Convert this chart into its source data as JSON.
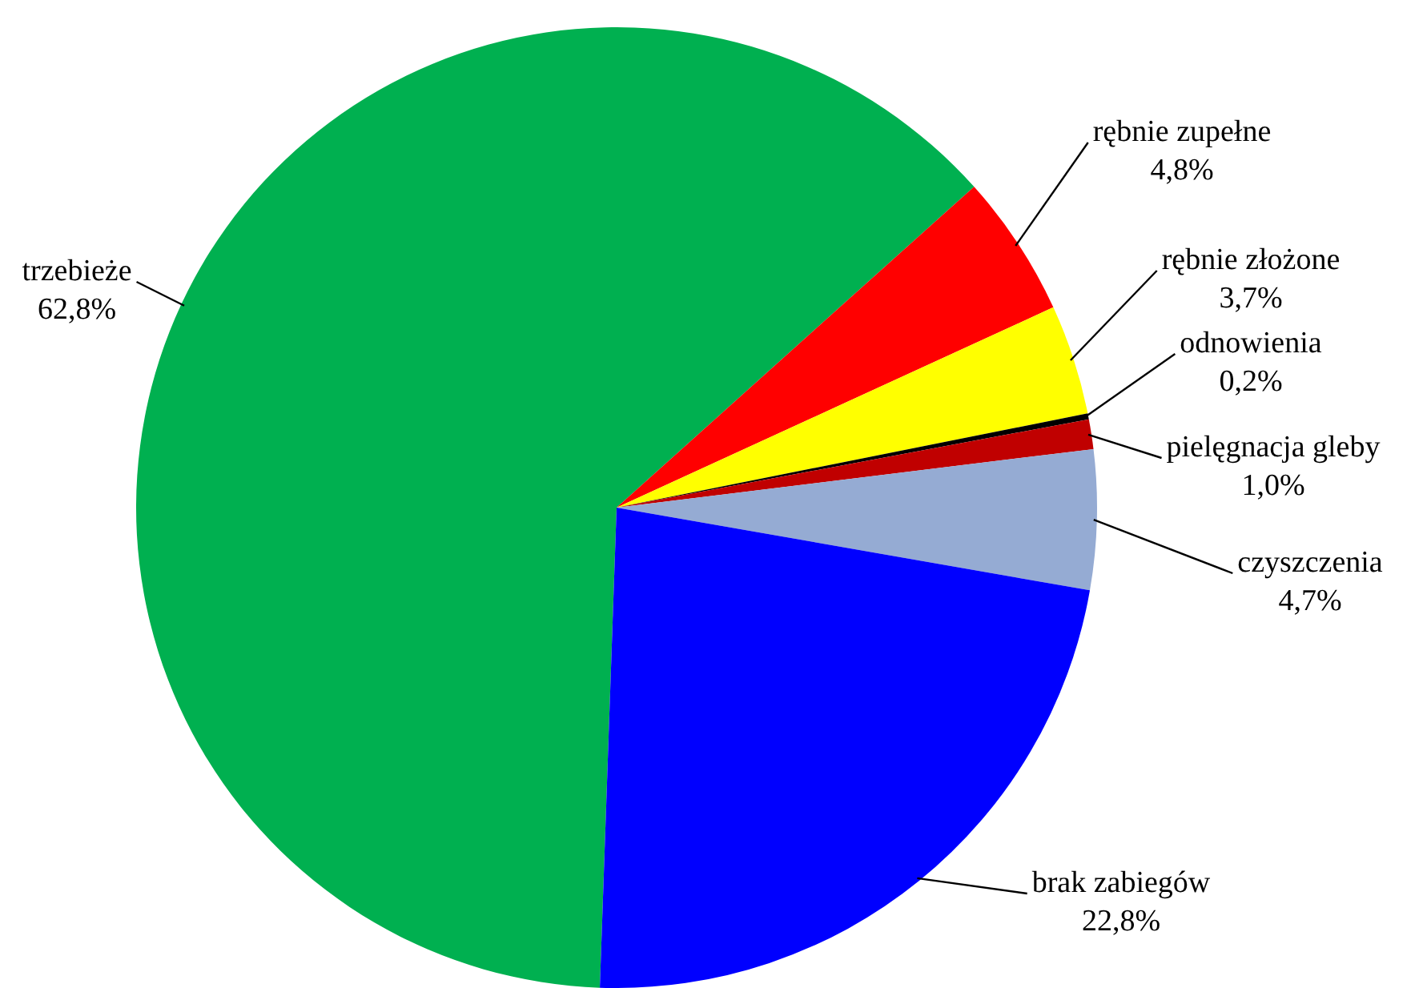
{
  "chart_data": {
    "type": "pie",
    "categories": [
      "trzebieże",
      "rębnie zupełne",
      "rębnie złożone",
      "odnowienia",
      "pielęgnacja gleby",
      "czyszczenia",
      "brak zabiegów"
    ],
    "values": [
      62.8,
      4.8,
      3.7,
      0.2,
      1.0,
      4.7,
      22.8
    ],
    "value_labels": [
      "62,8%",
      "4,8%",
      "3,7%",
      "0,2%",
      "1,0%",
      "4,7%",
      "22,8%"
    ],
    "colors": [
      "#00b050",
      "#ff0000",
      "#ffff00",
      "#000000",
      "#c00000",
      "#95abd3",
      "#0000ff"
    ],
    "legend": false
  }
}
